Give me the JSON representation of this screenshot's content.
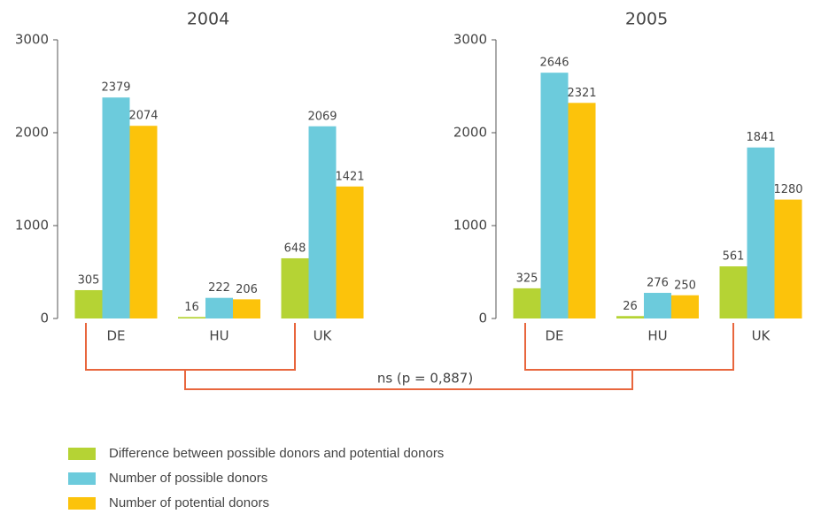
{
  "chart_data": [
    {
      "type": "bar",
      "title": "2004",
      "categories": [
        "DE",
        "HU",
        "UK"
      ],
      "series": [
        {
          "name": "Difference between possible donors and potential donors",
          "color": "#b5d334",
          "values": [
            305,
            16,
            648
          ]
        },
        {
          "name": "Number of possible donors",
          "color": "#6ccbdc",
          "values": [
            2379,
            222,
            2069
          ]
        },
        {
          "name": "Number of potential donors",
          "color": "#fcc30b",
          "values": [
            2074,
            206,
            1421
          ]
        }
      ],
      "ylim": [
        0,
        3000
      ],
      "yticks": [
        0,
        1000,
        2000,
        3000
      ]
    },
    {
      "type": "bar",
      "title": "2005",
      "categories": [
        "DE",
        "HU",
        "UK"
      ],
      "series": [
        {
          "values": [
            325,
            26,
            561
          ]
        },
        {
          "values": [
            2646,
            276,
            1841
          ]
        },
        {
          "values": [
            2321,
            250,
            1280
          ]
        }
      ],
      "ylim": [
        0,
        3000
      ],
      "yticks": [
        0,
        1000,
        2000,
        3000
      ]
    }
  ],
  "annotation": "ns (p = 0,887)"
}
